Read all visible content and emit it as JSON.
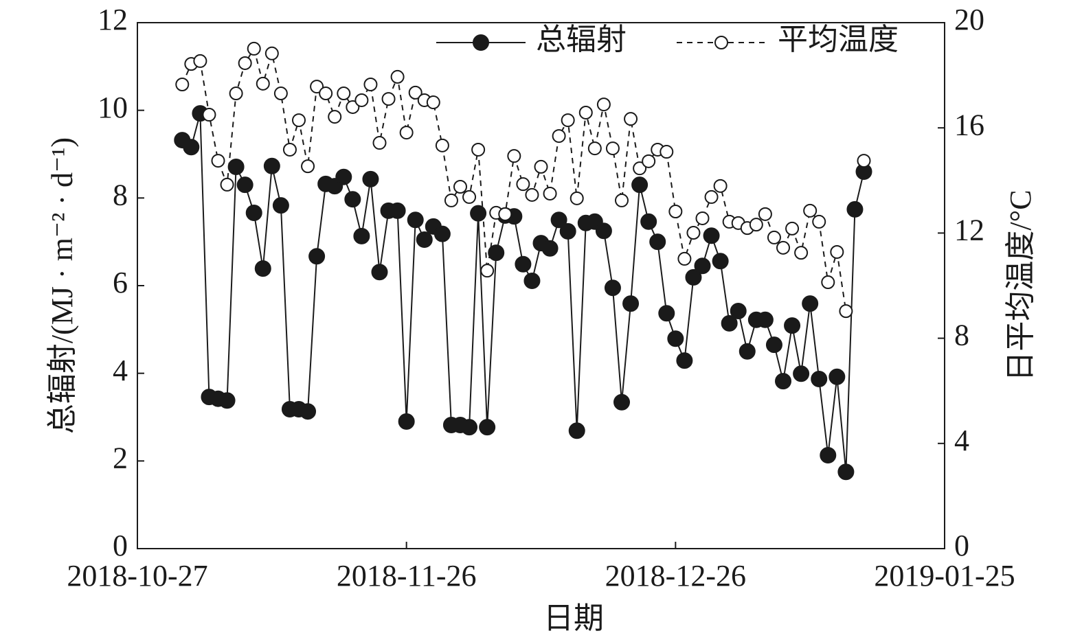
{
  "chart_data": {
    "type": "line",
    "xlabel": "日期",
    "ylabel": "总辐射/(MJ · m⁻² · d⁻¹)",
    "y2label": "日平均温度/°C",
    "legend": "upper right",
    "x": [
      "2018-11-01",
      "2018-11-02",
      "2018-11-03",
      "2018-11-04",
      "2018-11-05",
      "2018-11-06",
      "2018-11-07",
      "2018-11-08",
      "2018-11-09",
      "2018-11-10",
      "2018-11-11",
      "2018-11-12",
      "2018-11-13",
      "2018-11-14",
      "2018-11-15",
      "2018-11-16",
      "2018-11-17",
      "2018-11-18",
      "2018-11-19",
      "2018-11-20",
      "2018-11-21",
      "2018-11-22",
      "2018-11-23",
      "2018-11-24",
      "2018-11-25",
      "2018-11-26",
      "2018-11-27",
      "2018-11-28",
      "2018-11-29",
      "2018-11-30",
      "2018-12-01",
      "2018-12-02",
      "2018-12-03",
      "2018-12-04",
      "2018-12-05",
      "2018-12-06",
      "2018-12-07",
      "2018-12-08",
      "2018-12-09",
      "2018-12-10",
      "2018-12-11",
      "2018-12-12",
      "2018-12-13",
      "2018-12-14",
      "2018-12-15",
      "2018-12-16",
      "2018-12-17",
      "2018-12-18",
      "2018-12-19",
      "2018-12-20",
      "2018-12-21",
      "2018-12-22",
      "2018-12-23",
      "2018-12-24",
      "2018-12-25",
      "2018-12-26",
      "2018-12-27",
      "2018-12-28",
      "2018-12-29",
      "2018-12-30",
      "2018-12-31",
      "2019-01-01",
      "2019-01-02",
      "2019-01-03",
      "2019-01-04",
      "2019-01-05",
      "2019-01-06",
      "2019-01-07",
      "2019-01-08",
      "2019-01-09",
      "2019-01-10",
      "2019-01-11",
      "2019-01-12",
      "2019-01-13",
      "2019-01-14",
      "2019-01-15",
      "2019-01-16"
    ],
    "series": [
      {
        "name": "总辐射",
        "color": "#1a1a1a",
        "marker": "filled",
        "dash": false,
        "values": [
          9.32,
          9.16,
          9.93,
          3.46,
          3.42,
          3.38,
          8.71,
          8.3,
          7.66,
          6.39,
          8.73,
          7.83,
          3.18,
          3.18,
          3.13,
          6.67,
          8.32,
          8.27,
          8.48,
          7.97,
          7.13,
          8.43,
          6.31,
          7.71,
          7.71,
          2.9,
          7.5,
          7.05,
          7.35,
          7.18,
          2.82,
          2.82,
          2.77,
          7.65,
          2.77,
          6.75,
          7.6,
          7.58,
          6.49,
          6.11,
          6.97,
          6.85,
          7.5,
          7.24,
          2.69,
          7.43,
          7.46,
          7.25,
          5.95,
          3.34,
          5.59,
          8.3,
          7.46,
          7.0,
          5.37,
          4.79,
          4.29,
          6.19,
          6.45,
          7.14,
          6.56,
          5.14,
          5.42,
          4.5,
          5.22,
          5.22,
          4.65,
          3.82,
          5.09,
          3.99,
          5.59,
          3.87,
          2.13,
          3.92,
          1.75,
          7.74,
          8.6
        ]
      },
      {
        "name": "平均温度",
        "color": "#1a1a1a",
        "marker": "open",
        "dash": true,
        "axis": "y2",
        "values": [
          17.65,
          18.43,
          18.54,
          16.5,
          14.75,
          13.84,
          17.31,
          18.46,
          19.01,
          17.68,
          18.83,
          17.31,
          15.17,
          16.29,
          14.54,
          17.57,
          17.31,
          16.42,
          17.31,
          16.79,
          17.05,
          17.65,
          15.43,
          17.1,
          17.94,
          15.82,
          17.34,
          17.05,
          16.97,
          15.33,
          13.24,
          13.76,
          13.37,
          15.17,
          10.57,
          12.77,
          12.72,
          14.93,
          13.86,
          13.45,
          14.52,
          13.5,
          15.69,
          16.29,
          13.32,
          16.58,
          15.22,
          16.89,
          15.22,
          13.24,
          16.34,
          14.46,
          14.73,
          15.17,
          15.09,
          12.82,
          11.02,
          12.01,
          12.56,
          13.37,
          13.79,
          12.43,
          12.38,
          12.19,
          12.32,
          12.72,
          11.83,
          11.44,
          12.17,
          11.25,
          12.85,
          12.43,
          10.13,
          11.28,
          9.03,
          null,
          14.75
        ]
      }
    ],
    "xlim": [
      "2018-10-27",
      "2019-01-25"
    ],
    "xticks": [
      "2018-10-27",
      "2018-11-26",
      "2018-12-26",
      "2019-01-25"
    ],
    "ylim": [
      0,
      12
    ],
    "yticks": [
      0,
      2,
      4,
      6,
      8,
      10,
      12
    ],
    "y2lim": [
      0,
      20
    ],
    "y2ticks": [
      0,
      4,
      8,
      12,
      16,
      20
    ]
  }
}
